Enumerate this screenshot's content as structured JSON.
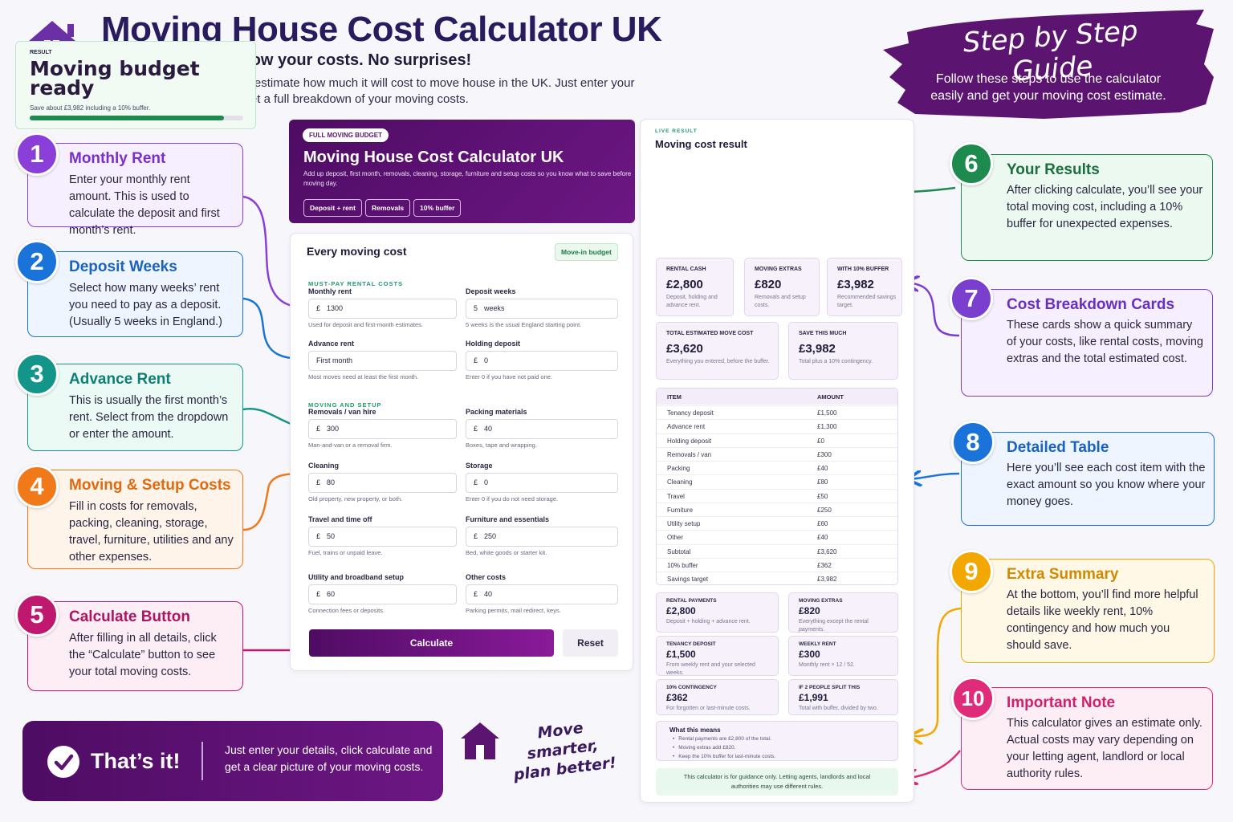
{
  "header": {
    "title": "Moving House Cost Calculator UK",
    "tagline": "Plan your move. Know your costs. No surprises!",
    "intro": "Use this simple calculator to estimate how much it will cost to move house in the UK. Just enter your details, click calculate and get a full breakdown of your moving costs."
  },
  "guide": {
    "title": "Step by Step Guide",
    "text": "Follow these steps to use the calculator easily and get your moving cost estimate."
  },
  "steps": [
    {
      "number": "1",
      "title": "Monthly Rent",
      "text": "Enter your monthly rent amount. This is used to calculate the deposit and first month’s rent."
    },
    {
      "number": "2",
      "title": "Deposit Weeks",
      "text": "Select how many weeks’ rent you need to pay as a deposit. (Usually 5 weeks in England.)"
    },
    {
      "number": "3",
      "title": "Advance Rent",
      "text": "This is usually the first month’s rent. Select from the dropdown or enter the amount."
    },
    {
      "number": "4",
      "title": "Moving & Setup Costs",
      "text": "Fill in costs for removals, packing, cleaning, storage, travel, furniture, utilities and any other expenses."
    },
    {
      "number": "5",
      "title": "Calculate Button",
      "text": "After filling in all details, click the “Calculate” button to see your total moving costs."
    },
    {
      "number": "6",
      "title": "Your Results",
      "text": "After clicking calculate, you’ll see your total moving cost, including a 10% buffer for unexpected expenses."
    },
    {
      "number": "7",
      "title": "Cost Breakdown Cards",
      "text": "These cards show a quick summary of your costs, like rental costs, moving extras and the total estimated cost."
    },
    {
      "number": "8",
      "title": "Detailed Table",
      "text": "Here you’ll see each cost item with the exact amount so you know where your money goes."
    },
    {
      "number": "9",
      "title": "Extra Summary",
      "text": "At the bottom, you’ll find more helpful details like weekly rent, 10% contingency and how much you should save."
    },
    {
      "number": "10",
      "title": "Important Note",
      "text": "This calculator gives an estimate only. Actual costs may vary depending on your letting agent, landlord or local authority rules."
    }
  ],
  "calculator": {
    "badge": "FULL MOVING BUDGET",
    "title": "Moving House Cost Calculator UK",
    "subtitle": "Add up deposit, first month, removals, cleaning, storage, furniture and setup costs so you know what to save before moving day.",
    "chips": [
      "Deposit + rent",
      "Removals",
      "10% buffer"
    ],
    "form": {
      "title": "Every moving cost",
      "badge": "Move-in budget",
      "sections": [
        {
          "heading": "MUST-PAY RENTAL COSTS",
          "fields": [
            {
              "label": "Monthly rent",
              "prefix": "£",
              "value": "1300",
              "hint": "Used for deposit and first-month estimates."
            },
            {
              "label": "Deposit weeks",
              "value": "5",
              "suffix": "weeks",
              "hint": "5 weeks is the usual England starting point."
            },
            {
              "label": "Advance rent",
              "value": "First month",
              "hint": "Most moves need at least the first month."
            },
            {
              "label": "Holding deposit",
              "prefix": "£",
              "value": "0",
              "hint": "Enter 0 if you have not paid one."
            }
          ]
        },
        {
          "heading": "MOVING AND SETUP",
          "fields": [
            {
              "label": "Removals / van hire",
              "prefix": "£",
              "value": "300",
              "hint": "Man-and-van or a removal firm."
            },
            {
              "label": "Packing materials",
              "prefix": "£",
              "value": "40",
              "hint": "Boxes, tape and wrapping."
            },
            {
              "label": "Cleaning",
              "prefix": "£",
              "value": "80",
              "hint": "Old property, new property, or both."
            },
            {
              "label": "Storage",
              "prefix": "£",
              "value": "0",
              "hint": "Enter 0 if you do not need storage."
            },
            {
              "label": "Travel and time off",
              "prefix": "£",
              "value": "50",
              "hint": "Fuel, trains or unpaid leave."
            },
            {
              "label": "Furniture and essentials",
              "prefix": "£",
              "value": "250",
              "hint": "Bed, white goods or starter kit."
            },
            {
              "label": "Utility and broadband setup",
              "prefix": "£",
              "value": "60",
              "hint": "Connection fees or deposits."
            },
            {
              "label": "Other costs",
              "prefix": "£",
              "value": "40",
              "hint": "Parking permits, mail redirect, keys."
            }
          ]
        }
      ],
      "calculate": "Calculate",
      "reset": "Reset"
    }
  },
  "result": {
    "label": "LIVE RESULT",
    "title": "Moving cost result",
    "hero": {
      "label": "RESULT",
      "title": "Moving budget ready",
      "text": "Save about £3,982 including a 10% buffer."
    },
    "cards": [
      {
        "label": "RENTAL CASH",
        "value": "£2,800",
        "text": "Deposit, holding and advance rent."
      },
      {
        "label": "MOVING EXTRAS",
        "value": "£820",
        "text": "Removals and setup costs."
      },
      {
        "label": "WITH 10% BUFFER",
        "value": "£3,982",
        "text": "Recommended savings target."
      },
      {
        "label": "TOTAL ESTIMATED MOVE COST",
        "value": "£3,620",
        "text": "Everything you entered, before the buffer."
      },
      {
        "label": "SAVE THIS MUCH",
        "value": "£3,982",
        "text": "Total plus a 10% contingency."
      }
    ],
    "table": {
      "columns": [
        "ITEM",
        "AMOUNT"
      ],
      "rows": [
        [
          "Tenancy deposit",
          "£1,500"
        ],
        [
          "Advance rent",
          "£1,300"
        ],
        [
          "Holding deposit",
          "£0"
        ],
        [
          "Removals / van",
          "£300"
        ],
        [
          "Packing",
          "£40"
        ],
        [
          "Cleaning",
          "£80"
        ],
        [
          "Travel",
          "£50"
        ],
        [
          "Furniture",
          "£250"
        ],
        [
          "Utility setup",
          "£60"
        ],
        [
          "Other",
          "£40"
        ],
        [
          "Subtotal",
          "£3,620"
        ],
        [
          "10% buffer",
          "£362"
        ],
        [
          "Savings target",
          "£3,982"
        ]
      ]
    },
    "summary": [
      {
        "label": "RENTAL PAYMENTS",
        "value": "£2,800",
        "text": "Deposit + holding + advance rent."
      },
      {
        "label": "MOVING EXTRAS",
        "value": "£820",
        "text": "Everything except the rental payments."
      },
      {
        "label": "TENANCY DEPOSIT",
        "value": "£1,500",
        "text": "From weekly rent and your selected weeks."
      },
      {
        "label": "WEEKLY RENT",
        "value": "£300",
        "text": "Monthly rent × 12 / 52."
      },
      {
        "label": "10% CONTINGENCY",
        "value": "£362",
        "text": "For forgotten or last-minute costs."
      },
      {
        "label": "IF 2 PEOPLE SPLIT THIS",
        "value": "£1,991",
        "text": "Total with buffer, divided by two."
      }
    ],
    "means": {
      "title": "What this means",
      "items": [
        "Rental payments are £2,800 of the total.",
        "Moving extras add £820.",
        "Keep the 10% buffer for last-minute costs."
      ]
    },
    "note": "This calculator is for guidance only. Letting agents, landlords and local authorities may use different rules."
  },
  "footer": {
    "title": "That’s it!",
    "text": "Just enter your details, click calculate and get a clear picture of your moving costs.",
    "slogan": "Move smarter, plan better!"
  }
}
